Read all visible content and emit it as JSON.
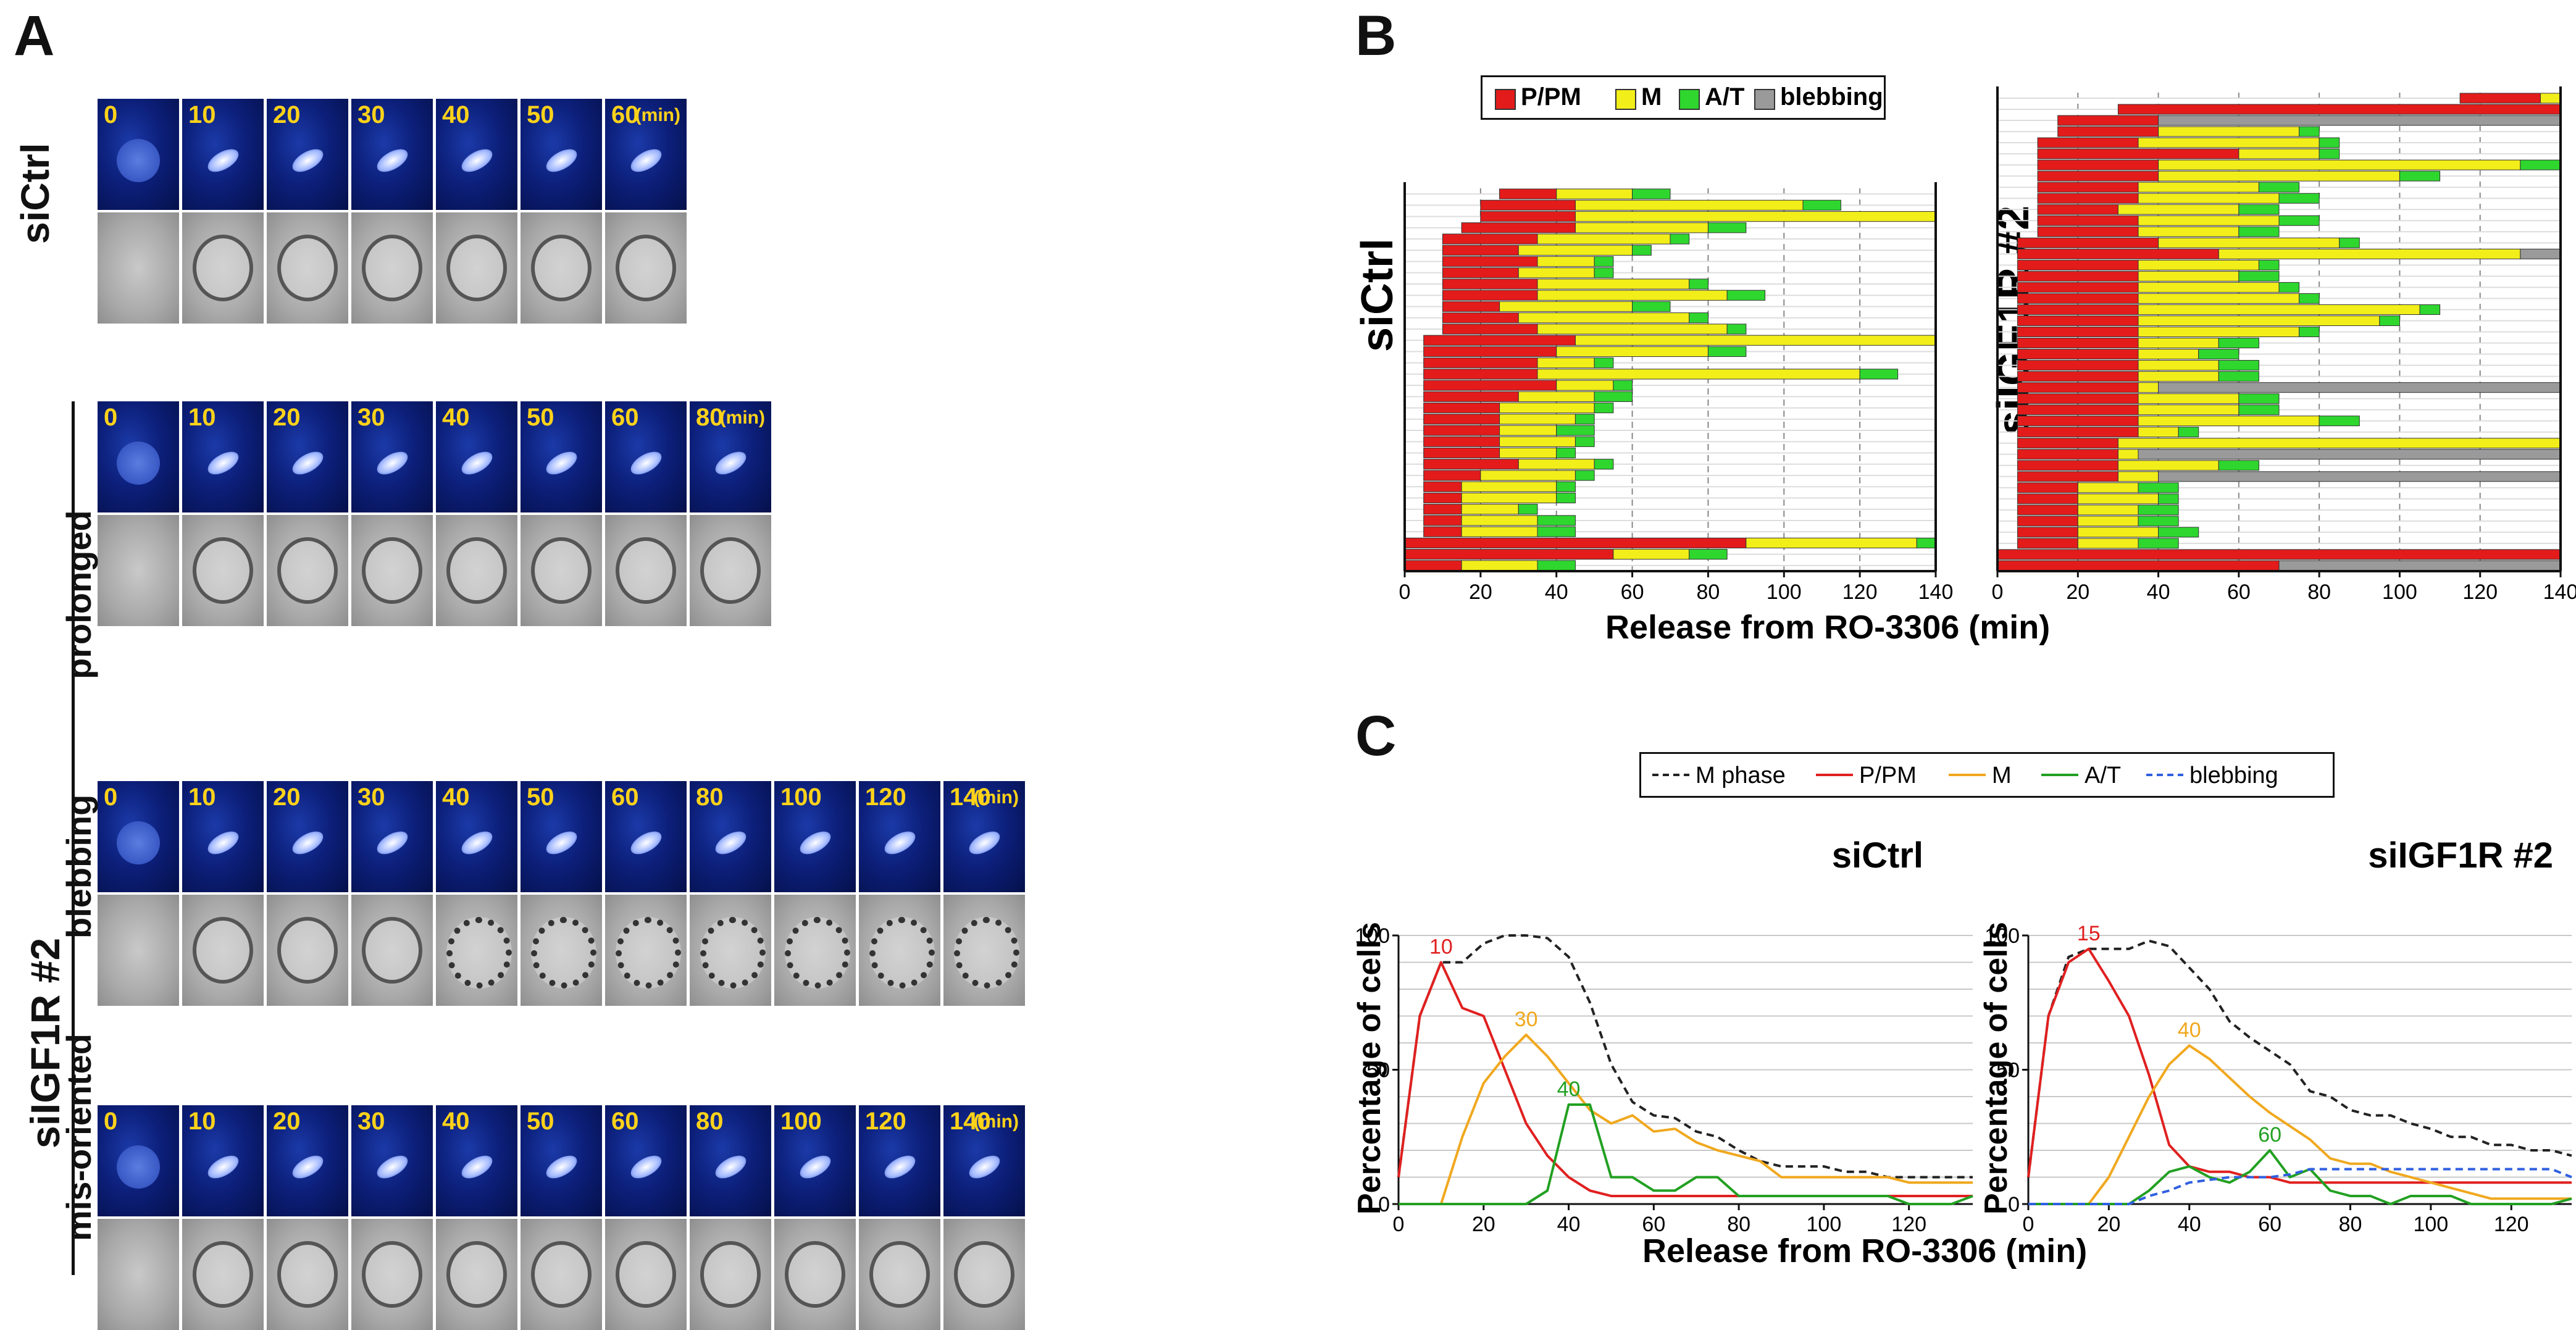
{
  "panels": {
    "a": "A",
    "b": "B",
    "c": "C"
  },
  "panel_a": {
    "row_labels": {
      "ctrl": "siCtrl",
      "prolonged": "prolonged",
      "blebbing": "blebbing",
      "misoriented": "mis-oriented",
      "group": "siIGF1R #2"
    },
    "unit": "(min)",
    "rows": [
      {
        "key": "ctrl",
        "times": [
          "0",
          "10",
          "20",
          "30",
          "40",
          "50",
          "60"
        ]
      },
      {
        "key": "prolonged",
        "times": [
          "0",
          "10",
          "20",
          "30",
          "40",
          "50",
          "60",
          "80"
        ]
      },
      {
        "key": "blebbing",
        "times": [
          "0",
          "10",
          "20",
          "30",
          "40",
          "50",
          "60",
          "80",
          "100",
          "120",
          "140"
        ]
      },
      {
        "key": "misoriented",
        "times": [
          "0",
          "10",
          "20",
          "30",
          "40",
          "50",
          "60",
          "80",
          "100",
          "120",
          "140"
        ]
      }
    ]
  },
  "chart_data": [
    {
      "type": "bar",
      "subtype": "stacked-horizontal-timeline",
      "title": "siCtrl",
      "xlabel": "Release from RO-3306 (min)",
      "xlim": [
        0,
        140
      ],
      "xticks": [
        0,
        20,
        40,
        60,
        80,
        100,
        120,
        140
      ],
      "legend": [
        "P/PM",
        "M",
        "A/T",
        "blebbing"
      ],
      "colors": {
        "P/PM": "#e31b1b",
        "M": "#f2ee1a",
        "A/T": "#2ed62e",
        "blebbing": "#9a9a9a"
      },
      "cells": [
        [
          25,
          40,
          60,
          70
        ],
        [
          20,
          45,
          105,
          115
        ],
        [
          20,
          45,
          140,
          140
        ],
        [
          15,
          45,
          80,
          90
        ],
        [
          10,
          35,
          70,
          75
        ],
        [
          10,
          30,
          60,
          65
        ],
        [
          10,
          35,
          50,
          55
        ],
        [
          10,
          30,
          50,
          55
        ],
        [
          10,
          35,
          75,
          80
        ],
        [
          10,
          35,
          85,
          95
        ],
        [
          10,
          25,
          60,
          70
        ],
        [
          10,
          30,
          75,
          80
        ],
        [
          10,
          35,
          85,
          90
        ],
        [
          5,
          45,
          140,
          140
        ],
        [
          5,
          40,
          80,
          90
        ],
        [
          5,
          35,
          50,
          55
        ],
        [
          5,
          35,
          120,
          130
        ],
        [
          5,
          40,
          55,
          60
        ],
        [
          5,
          30,
          50,
          60
        ],
        [
          5,
          25,
          50,
          55
        ],
        [
          5,
          25,
          45,
          50
        ],
        [
          5,
          25,
          40,
          50
        ],
        [
          5,
          25,
          45,
          50
        ],
        [
          5,
          25,
          40,
          45
        ],
        [
          5,
          30,
          50,
          55
        ],
        [
          5,
          20,
          45,
          50
        ],
        [
          5,
          15,
          40,
          45
        ],
        [
          5,
          15,
          40,
          45
        ],
        [
          5,
          15,
          30,
          35
        ],
        [
          5,
          15,
          35,
          45
        ],
        [
          5,
          15,
          35,
          45
        ],
        [
          0,
          90,
          135,
          140
        ],
        [
          0,
          55,
          75,
          85
        ],
        [
          0,
          15,
          35,
          45
        ]
      ]
    },
    {
      "type": "bar",
      "subtype": "stacked-horizontal-timeline",
      "title": "siIGF1R #2",
      "xlabel": "Release from RO-3306 (min)",
      "xlim": [
        0,
        140
      ],
      "xticks": [
        0,
        20,
        40,
        60,
        80,
        100,
        120,
        140
      ],
      "legend": [
        "P/PM",
        "M",
        "A/T",
        "blebbing"
      ],
      "colors": {
        "P/PM": "#e31b1b",
        "M": "#f2ee1a",
        "A/T": "#2ed62e",
        "blebbing": "#9a9a9a"
      },
      "cells": [
        [
          115,
          135,
          140,
          140,
          0
        ],
        [
          30,
          140,
          140,
          140,
          0
        ],
        [
          15,
          40,
          40,
          40,
          140
        ],
        [
          15,
          40,
          75,
          80,
          0
        ],
        [
          10,
          35,
          80,
          85,
          0
        ],
        [
          10,
          60,
          80,
          85,
          0
        ],
        [
          10,
          40,
          130,
          140,
          0
        ],
        [
          10,
          40,
          100,
          110,
          0
        ],
        [
          10,
          35,
          65,
          75,
          0
        ],
        [
          10,
          35,
          70,
          80,
          0
        ],
        [
          10,
          30,
          60,
          70,
          0
        ],
        [
          10,
          35,
          70,
          80,
          0
        ],
        [
          10,
          35,
          60,
          70,
          0
        ],
        [
          5,
          40,
          85,
          90,
          0
        ],
        [
          5,
          55,
          130,
          130,
          140
        ],
        [
          5,
          35,
          65,
          70,
          0
        ],
        [
          5,
          35,
          60,
          70,
          0
        ],
        [
          5,
          35,
          70,
          75,
          0
        ],
        [
          5,
          35,
          75,
          80,
          0
        ],
        [
          5,
          35,
          105,
          110,
          0
        ],
        [
          5,
          35,
          95,
          100,
          0
        ],
        [
          5,
          35,
          75,
          80,
          0
        ],
        [
          5,
          35,
          55,
          65,
          0
        ],
        [
          5,
          35,
          50,
          60,
          0
        ],
        [
          5,
          35,
          55,
          65,
          0
        ],
        [
          5,
          35,
          55,
          65,
          0
        ],
        [
          5,
          35,
          40,
          40,
          140
        ],
        [
          5,
          35,
          60,
          70,
          0
        ],
        [
          5,
          35,
          60,
          70,
          0
        ],
        [
          5,
          35,
          80,
          90,
          0
        ],
        [
          5,
          35,
          45,
          50,
          0
        ],
        [
          5,
          30,
          140,
          140,
          0
        ],
        [
          5,
          30,
          35,
          35,
          140
        ],
        [
          5,
          30,
          55,
          65,
          0
        ],
        [
          5,
          30,
          40,
          40,
          140
        ],
        [
          5,
          20,
          35,
          45,
          0
        ],
        [
          5,
          20,
          40,
          45,
          0
        ],
        [
          5,
          20,
          35,
          45,
          0
        ],
        [
          5,
          20,
          35,
          45,
          0
        ],
        [
          5,
          20,
          40,
          50,
          0
        ],
        [
          5,
          20,
          35,
          45,
          0
        ],
        [
          0,
          140,
          140,
          140,
          0
        ],
        [
          0,
          70,
          70,
          70,
          140
        ]
      ]
    },
    {
      "type": "line",
      "title": "siCtrl",
      "xlabel": "Release from RO-3306 (min)",
      "ylabel": "Percentage of cells",
      "xlim": [
        0,
        135
      ],
      "ylim": [
        0,
        100
      ],
      "xticks": [
        0,
        20,
        40,
        60,
        80,
        100,
        120
      ],
      "yticks": [
        0,
        50,
        100
      ],
      "x": [
        0,
        5,
        10,
        15,
        20,
        25,
        30,
        35,
        40,
        45,
        50,
        55,
        60,
        65,
        70,
        75,
        80,
        85,
        90,
        95,
        100,
        105,
        110,
        115,
        120,
        125,
        130,
        135
      ],
      "series": [
        {
          "name": "M phase",
          "color": "#222222",
          "dash": true,
          "values": [
            10,
            70,
            90,
            90,
            97,
            100,
            100,
            99,
            92,
            75,
            52,
            38,
            33,
            32,
            27,
            25,
            20,
            16,
            14,
            14,
            14,
            12,
            12,
            10,
            10,
            10,
            10,
            10
          ]
        },
        {
          "name": "P/PM",
          "color": "#e02020",
          "dash": false,
          "values": [
            10,
            70,
            90,
            73,
            70,
            50,
            30,
            18,
            10,
            5,
            3,
            3,
            3,
            3,
            3,
            3,
            3,
            3,
            3,
            3,
            3,
            3,
            3,
            3,
            3,
            3,
            3,
            3
          ]
        },
        {
          "name": "M",
          "color": "#f0a81e",
          "dash": false,
          "values": [
            0,
            0,
            0,
            25,
            45,
            55,
            63,
            55,
            45,
            35,
            30,
            33,
            27,
            28,
            23,
            20,
            18,
            16,
            10,
            10,
            10,
            10,
            10,
            10,
            8,
            8,
            8,
            8
          ]
        },
        {
          "name": "A/T",
          "color": "#22a022",
          "dash": false,
          "values": [
            0,
            0,
            0,
            0,
            0,
            0,
            0,
            5,
            37,
            37,
            10,
            10,
            5,
            5,
            10,
            10,
            3,
            3,
            3,
            3,
            3,
            3,
            3,
            3,
            0,
            0,
            0,
            3
          ]
        }
      ],
      "annotations": [
        {
          "text": "10",
          "x": 10,
          "y": 90,
          "color": "#e02020"
        },
        {
          "text": "30",
          "x": 30,
          "y": 63,
          "color": "#f0a81e"
        },
        {
          "text": "40",
          "x": 40,
          "y": 37,
          "color": "#22a022"
        }
      ]
    },
    {
      "type": "line",
      "title": "siIGF1R #2",
      "xlabel": "Release from RO-3306 (min)",
      "ylabel": "Percentage of cells",
      "xlim": [
        0,
        135
      ],
      "ylim": [
        0,
        100
      ],
      "xticks": [
        0,
        20,
        40,
        60,
        80,
        100,
        120
      ],
      "yticks": [
        0,
        50,
        100
      ],
      "x": [
        0,
        5,
        10,
        15,
        20,
        25,
        30,
        35,
        40,
        45,
        50,
        55,
        60,
        65,
        70,
        75,
        80,
        85,
        90,
        95,
        100,
        105,
        110,
        115,
        120,
        125,
        130,
        135
      ],
      "series": [
        {
          "name": "M phase",
          "color": "#222222",
          "dash": true,
          "values": [
            10,
            70,
            92,
            95,
            95,
            95,
            98,
            96,
            88,
            80,
            68,
            62,
            57,
            52,
            42,
            40,
            35,
            33,
            33,
            30,
            28,
            25,
            25,
            22,
            22,
            20,
            20,
            18
          ]
        },
        {
          "name": "P/PM",
          "color": "#e02020",
          "dash": false,
          "values": [
            10,
            70,
            90,
            95,
            83,
            70,
            48,
            22,
            14,
            12,
            12,
            10,
            10,
            8,
            8,
            8,
            8,
            8,
            8,
            8,
            8,
            8,
            8,
            8,
            8,
            8,
            8,
            8
          ]
        },
        {
          "name": "M",
          "color": "#f0a81e",
          "dash": false,
          "values": [
            0,
            0,
            0,
            0,
            10,
            25,
            40,
            52,
            59,
            54,
            47,
            40,
            34,
            29,
            24,
            17,
            15,
            15,
            12,
            10,
            8,
            6,
            4,
            2,
            2,
            2,
            2,
            2
          ]
        },
        {
          "name": "A/T",
          "color": "#22a022",
          "dash": false,
          "values": [
            0,
            0,
            0,
            0,
            0,
            0,
            5,
            12,
            14,
            10,
            8,
            12,
            20,
            10,
            13,
            5,
            3,
            3,
            0,
            3,
            3,
            3,
            0,
            0,
            0,
            0,
            0,
            2
          ]
        },
        {
          "name": "blebbing",
          "color": "#3060e0",
          "dash": true,
          "values": [
            0,
            0,
            0,
            0,
            0,
            0,
            3,
            5,
            8,
            9,
            10,
            10,
            10,
            11,
            13,
            13,
            13,
            13,
            13,
            13,
            13,
            13,
            13,
            13,
            13,
            13,
            13,
            10
          ]
        }
      ],
      "annotations": [
        {
          "text": "15",
          "x": 15,
          "y": 95,
          "color": "#e02020"
        },
        {
          "text": "40",
          "x": 40,
          "y": 59,
          "color": "#f0a81e"
        },
        {
          "text": "60",
          "x": 60,
          "y": 20,
          "color": "#22a022"
        }
      ]
    }
  ]
}
